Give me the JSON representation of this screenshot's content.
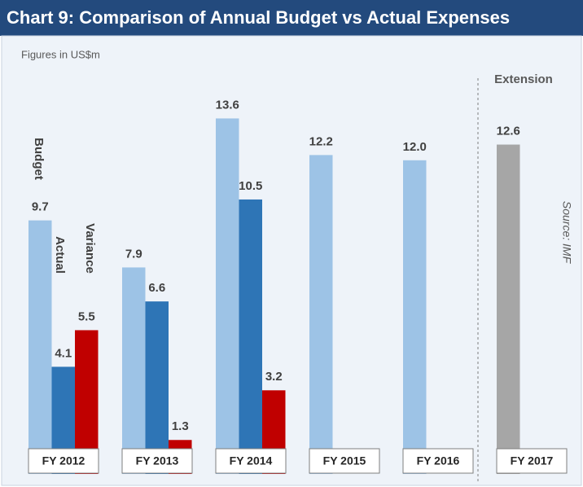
{
  "chart_data": {
    "type": "bar",
    "title": "Chart 9: Comparison of Annual Budget vs Actual Expenses",
    "subtitle": "Figures in US$m",
    "source": "Source: IMF",
    "categories": [
      "FY 2012",
      "FY 2013",
      "FY 2014",
      "FY 2015",
      "FY 2016",
      "FY 2017"
    ],
    "series": [
      {
        "name": "Budget",
        "color": "#9dc3e6",
        "values": [
          9.7,
          7.9,
          13.6,
          12.2,
          12.0,
          null
        ],
        "value_labels": [
          "9.7",
          "7.9",
          "13.6",
          "12.2",
          "12.0",
          null
        ]
      },
      {
        "name": "Actual",
        "color": "#2e75b6",
        "values": [
          4.1,
          6.6,
          10.5,
          null,
          null,
          null
        ]
      },
      {
        "name": "Variance",
        "color": "#c00000",
        "values": [
          5.5,
          1.3,
          3.2,
          null,
          null,
          null
        ]
      },
      {
        "name": "Extension",
        "color": "#a6a6a6",
        "values": [
          null,
          null,
          null,
          null,
          null,
          12.6
        ]
      }
    ]
  }
}
